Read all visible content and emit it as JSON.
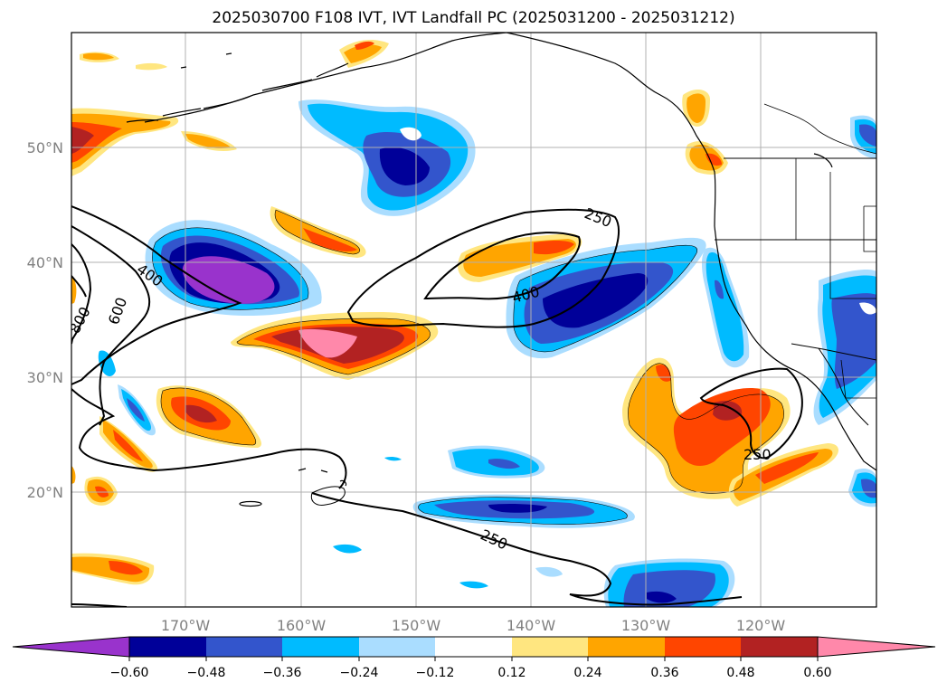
{
  "title": "2025030700 F108 IVT, IVT Landfall PC (2025031200 - 2025031212)",
  "lat_labels": [
    "50°N",
    "40°N",
    "30°N",
    "20°N"
  ],
  "lon_labels": [
    "170°W",
    "160°W",
    "150°W",
    "140°W",
    "130°W",
    "120°W"
  ],
  "contour_labels": [
    "400",
    "800",
    "600",
    "250",
    "400",
    "250",
    "250"
  ],
  "colorbar": {
    "colors": [
      "#9933cc",
      "#000099",
      "#3355cc",
      "#00bbff",
      "#aaddff",
      "#ffffff",
      "#ffe680",
      "#ffa500",
      "#ff4500",
      "#b22222",
      "#ff88aa"
    ],
    "tick_labels": [
      "−0.60",
      "−0.48",
      "−0.36",
      "−0.24",
      "−0.12",
      "0.12",
      "0.24",
      "0.36",
      "0.48",
      "0.60"
    ]
  }
}
